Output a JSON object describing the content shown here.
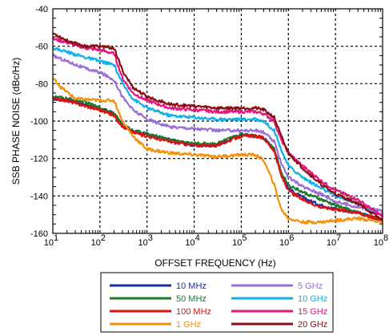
{
  "chart_data": {
    "type": "line",
    "x_scale": "log",
    "xlabel": "OFFSET FREQUENCY  (Hz)",
    "ylabel": "SSB PHASE NOISE (dBc/Hz)",
    "xlim": [
      10,
      100000000
    ],
    "ylim": [
      -160,
      -40
    ],
    "x_ticks": [
      {
        "mantissa": "10",
        "exp": "1"
      },
      {
        "mantissa": "10",
        "exp": "2"
      },
      {
        "mantissa": "10",
        "exp": "3"
      },
      {
        "mantissa": "10",
        "exp": "4"
      },
      {
        "mantissa": "10",
        "exp": "5"
      },
      {
        "mantissa": "10",
        "exp": "6"
      },
      {
        "mantissa": "10",
        "exp": "7"
      },
      {
        "mantissa": "10",
        "exp": "8"
      }
    ],
    "y_ticks": [
      "-40",
      "-60",
      "-80",
      "-100",
      "-120",
      "-140",
      "-160"
    ],
    "grid": true,
    "legend_position": "below",
    "series": [
      {
        "name": "10 MHz",
        "color": "#1a2fa0",
        "x": [
          10,
          20,
          50,
          100,
          200,
          300,
          500,
          1000,
          3000,
          10000,
          30000,
          100000,
          200000,
          300000,
          500000,
          700000,
          1000000,
          2000000,
          5000000,
          10000000,
          30000000,
          100000000
        ],
        "y": [
          -88,
          -89,
          -91,
          -93,
          -96,
          -102,
          -105,
          -107,
          -110,
          -113,
          -113,
          -107,
          -108,
          -109,
          -115,
          -128,
          -136,
          -141,
          -145,
          -147,
          -149,
          -153
        ]
      },
      {
        "name": "50 MHz",
        "color": "#1a7a2a",
        "x": [
          10,
          20,
          50,
          100,
          200,
          300,
          500,
          1000,
          3000,
          10000,
          30000,
          100000,
          200000,
          300000,
          500000,
          700000,
          1000000,
          2000000,
          5000000,
          10000000,
          30000000,
          100000000
        ],
        "y": [
          -87,
          -88,
          -90,
          -93,
          -96,
          -102,
          -105,
          -107,
          -110,
          -112,
          -112,
          -107,
          -108,
          -109,
          -115,
          -127,
          -134,
          -138,
          -142,
          -145,
          -149,
          -153
        ]
      },
      {
        "name": "100 MHz",
        "color": "#e01010",
        "x": [
          10,
          20,
          50,
          100,
          200,
          300,
          500,
          1000,
          3000,
          10000,
          30000,
          100000,
          200000,
          300000,
          500000,
          700000,
          1000000,
          2000000,
          5000000,
          10000000,
          30000000,
          100000000
        ],
        "y": [
          -88,
          -89,
          -92,
          -94,
          -97,
          -103,
          -106,
          -108,
          -111,
          -113,
          -113,
          -108,
          -108,
          -109,
          -116,
          -129,
          -137,
          -142,
          -146,
          -147,
          -149,
          -153
        ]
      },
      {
        "name": "1 GHz",
        "color": "#f5900a",
        "x": [
          10,
          15,
          30,
          100,
          200,
          300,
          500,
          1000,
          3000,
          10000,
          30000,
          100000,
          200000,
          300000,
          500000,
          700000,
          1000000,
          2000000,
          5000000,
          10000000,
          30000000,
          100000000
        ],
        "y": [
          -77,
          -82,
          -88,
          -89,
          -89,
          -100,
          -108,
          -115,
          -117,
          -118,
          -119,
          -118,
          -118,
          -121,
          -134,
          -147,
          -152,
          -154,
          -154,
          -153,
          -152,
          -154
        ]
      },
      {
        "name": "5 GHz",
        "color": "#9a6fd8",
        "x": [
          10,
          20,
          50,
          100,
          200,
          300,
          500,
          1000,
          3000,
          10000,
          30000,
          100000,
          200000,
          300000,
          500000,
          700000,
          1000000,
          2000000,
          5000000,
          10000000,
          30000000,
          100000000
        ],
        "y": [
          -65,
          -68,
          -72,
          -74,
          -78,
          -87,
          -94,
          -99,
          -103,
          -104,
          -105,
          -105,
          -105,
          -106,
          -111,
          -122,
          -130,
          -135,
          -139,
          -143,
          -146,
          -148
        ]
      },
      {
        "name": "10 GHz",
        "color": "#10b0ea",
        "x": [
          10,
          20,
          50,
          100,
          200,
          300,
          500,
          1000,
          3000,
          10000,
          30000,
          100000,
          200000,
          300000,
          500000,
          700000,
          1000000,
          2000000,
          5000000,
          10000000,
          30000000,
          100000000
        ],
        "y": [
          -61,
          -63,
          -66,
          -68,
          -70,
          -80,
          -88,
          -93,
          -97,
          -98,
          -99,
          -99,
          -99,
          -100,
          -105,
          -115,
          -124,
          -130,
          -136,
          -140,
          -144,
          -150
        ]
      },
      {
        "name": "15 GHz",
        "color": "#e8157f",
        "x": [
          10,
          20,
          50,
          100,
          200,
          300,
          500,
          1000,
          3000,
          10000,
          30000,
          100000,
          200000,
          300000,
          500000,
          700000,
          1000000,
          2000000,
          5000000,
          10000000,
          30000000,
          100000000
        ],
        "y": [
          -56,
          -58,
          -61,
          -62,
          -64,
          -77,
          -85,
          -89,
          -93,
          -94,
          -95,
          -95,
          -95,
          -96,
          -100,
          -110,
          -117,
          -124,
          -132,
          -137,
          -142,
          -151
        ]
      },
      {
        "name": "20 GHz",
        "color": "#8a0f15",
        "x": [
          10,
          20,
          50,
          100,
          200,
          300,
          500,
          1000,
          3000,
          10000,
          30000,
          100000,
          200000,
          300000,
          500000,
          700000,
          1000000,
          2000000,
          5000000,
          10000000,
          30000000,
          100000000
        ],
        "y": [
          -53,
          -57,
          -60,
          -60,
          -61,
          -73,
          -82,
          -87,
          -91,
          -92,
          -93,
          -93,
          -93,
          -94,
          -98,
          -108,
          -117,
          -125,
          -134,
          -139,
          -144,
          -153
        ]
      }
    ]
  }
}
